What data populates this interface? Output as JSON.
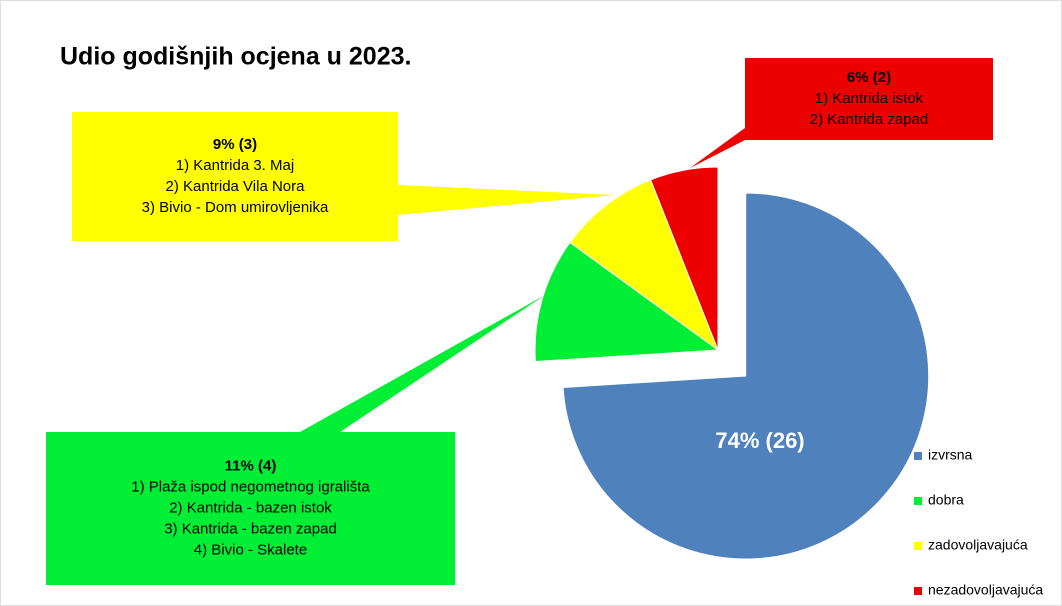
{
  "chart_data": {
    "type": "pie",
    "title": "Udio godišnjih ocjena u 2023.",
    "categories": [
      "izvrsna",
      "dobra",
      "zadovoljavajuća",
      "nezadovoljavajuća"
    ],
    "values": [
      74,
      11,
      9,
      6
    ],
    "value_labels": [
      "74% (26)",
      "11% (4)",
      "9% (3)",
      "6% (2)"
    ],
    "colors": [
      "#4f81bd",
      "#00ee33",
      "#ffff00",
      "#ee0000"
    ],
    "details": [
      [],
      [
        "1) Plaža ispod negometnog igrališta",
        "2) Kantrida - bazen istok",
        "3) Kantrida - bazen zapad",
        "4) Bivio - Skalete"
      ],
      [
        "1)  Kantrida 3. Maj",
        "2) Kantrida Vila Nora",
        "3) Bivio - Dom umirovljenika"
      ],
      [
        "1) Kantrida istok",
        "2) Kantrida zapad"
      ]
    ],
    "legend": "right"
  }
}
